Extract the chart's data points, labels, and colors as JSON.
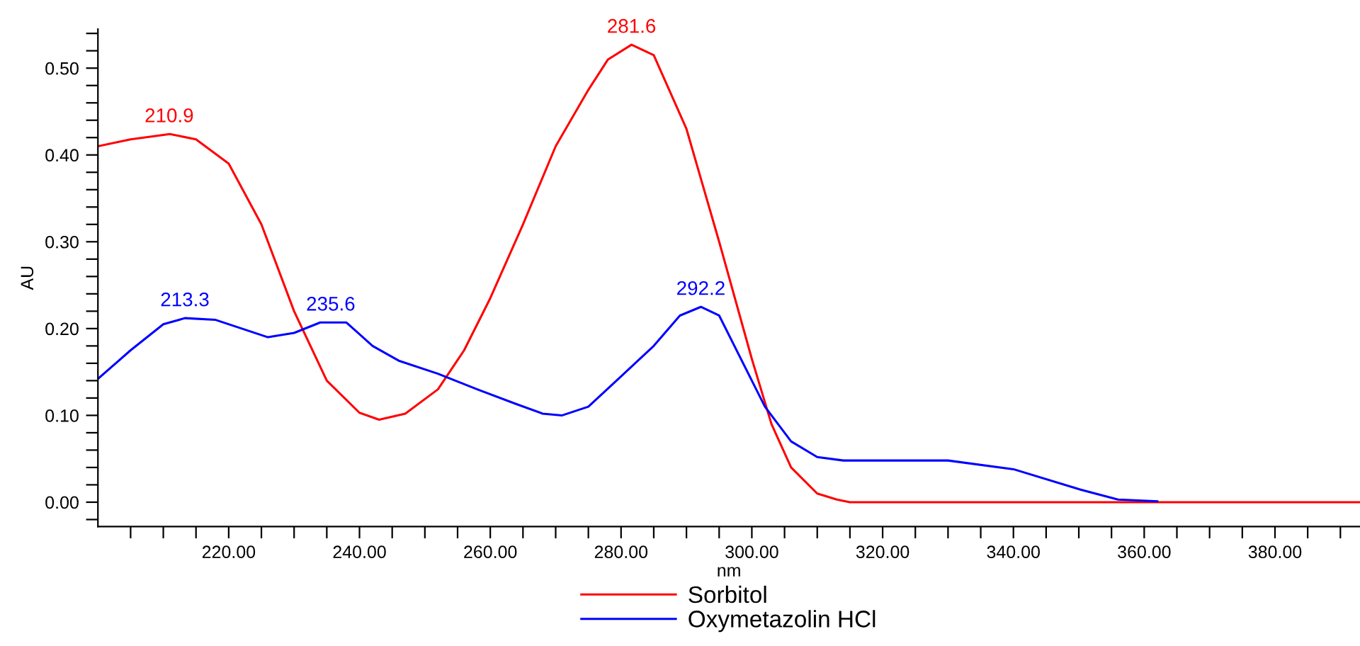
{
  "chart_data": {
    "type": "line",
    "xlabel": "nm",
    "ylabel": "AU",
    "xlim": [
      200,
      393
    ],
    "ylim": [
      -0.028,
      0.545
    ],
    "xticks": [
      {
        "value": 205,
        "label": null
      },
      {
        "value": 210,
        "label": null
      },
      {
        "value": 215,
        "label": null
      },
      {
        "value": 220,
        "label": "220.00"
      },
      {
        "value": 225,
        "label": null
      },
      {
        "value": 230,
        "label": null
      },
      {
        "value": 235,
        "label": null
      },
      {
        "value": 240,
        "label": "240.00"
      },
      {
        "value": 245,
        "label": null
      },
      {
        "value": 250,
        "label": null
      },
      {
        "value": 255,
        "label": null
      },
      {
        "value": 260,
        "label": "260.00"
      },
      {
        "value": 265,
        "label": null
      },
      {
        "value": 270,
        "label": null
      },
      {
        "value": 275,
        "label": null
      },
      {
        "value": 280,
        "label": "280.00"
      },
      {
        "value": 285,
        "label": null
      },
      {
        "value": 290,
        "label": null
      },
      {
        "value": 295,
        "label": null
      },
      {
        "value": 300,
        "label": "300.00"
      },
      {
        "value": 305,
        "label": null
      },
      {
        "value": 310,
        "label": null
      },
      {
        "value": 315,
        "label": null
      },
      {
        "value": 320,
        "label": "320.00"
      },
      {
        "value": 325,
        "label": null
      },
      {
        "value": 330,
        "label": null
      },
      {
        "value": 335,
        "label": null
      },
      {
        "value": 340,
        "label": "340.00"
      },
      {
        "value": 345,
        "label": null
      },
      {
        "value": 350,
        "label": null
      },
      {
        "value": 355,
        "label": null
      },
      {
        "value": 360,
        "label": "360.00"
      },
      {
        "value": 365,
        "label": null
      },
      {
        "value": 370,
        "label": null
      },
      {
        "value": 375,
        "label": null
      },
      {
        "value": 380,
        "label": "380.00"
      },
      {
        "value": 385,
        "label": null
      },
      {
        "value": 390,
        "label": null
      }
    ],
    "yticks": [
      {
        "value": -0.02,
        "label": null
      },
      {
        "value": 0,
        "label": "0.00"
      },
      {
        "value": 0.02,
        "label": null
      },
      {
        "value": 0.04,
        "label": null
      },
      {
        "value": 0.06,
        "label": null
      },
      {
        "value": 0.08,
        "label": null
      },
      {
        "value": 0.1,
        "label": "0.10"
      },
      {
        "value": 0.12,
        "label": null
      },
      {
        "value": 0.14,
        "label": null
      },
      {
        "value": 0.16,
        "label": null
      },
      {
        "value": 0.18,
        "label": null
      },
      {
        "value": 0.2,
        "label": "0.20"
      },
      {
        "value": 0.22,
        "label": null
      },
      {
        "value": 0.24,
        "label": null
      },
      {
        "value": 0.26,
        "label": null
      },
      {
        "value": 0.28,
        "label": null
      },
      {
        "value": 0.3,
        "label": "0.30"
      },
      {
        "value": 0.32,
        "label": null
      },
      {
        "value": 0.34,
        "label": null
      },
      {
        "value": 0.36,
        "label": null
      },
      {
        "value": 0.38,
        "label": null
      },
      {
        "value": 0.4,
        "label": "0.40"
      },
      {
        "value": 0.42,
        "label": null
      },
      {
        "value": 0.44,
        "label": null
      },
      {
        "value": 0.46,
        "label": null
      },
      {
        "value": 0.48,
        "label": null
      },
      {
        "value": 0.5,
        "label": "0.50"
      },
      {
        "value": 0.52,
        "label": null
      },
      {
        "value": 0.54,
        "label": null
      }
    ],
    "grid": false,
    "legend": "bottom",
    "marker": "none",
    "line_style": "solid",
    "series": [
      {
        "name": "Sorbitol",
        "color": "#ff0000",
        "x": [
          200,
          205,
          211,
          215,
          220,
          225,
          230,
          235,
          240,
          243,
          247,
          252,
          256,
          260,
          265,
          270,
          275,
          278,
          281.6,
          285,
          290,
          295,
          300,
          303,
          306,
          310,
          313,
          315,
          393
        ],
        "values": [
          0.41,
          0.418,
          0.424,
          0.418,
          0.39,
          0.32,
          0.22,
          0.14,
          0.103,
          0.095,
          0.102,
          0.13,
          0.175,
          0.235,
          0.32,
          0.41,
          0.475,
          0.51,
          0.527,
          0.515,
          0.43,
          0.3,
          0.165,
          0.09,
          0.04,
          0.01,
          0.003,
          0,
          0
        ]
      },
      {
        "name": "Oxymetazolin HCl",
        "color": "#0000ff",
        "x": [
          200,
          205,
          210,
          213.3,
          218,
          222,
          226,
          230,
          234,
          238,
          242,
          246,
          252,
          258,
          264,
          268,
          271,
          275,
          280,
          285,
          289,
          292.2,
          295,
          298,
          302,
          306,
          310,
          314,
          330,
          340,
          350,
          356,
          362
        ],
        "values": [
          0.142,
          0.175,
          0.205,
          0.212,
          0.21,
          0.2,
          0.19,
          0.195,
          0.207,
          0.207,
          0.18,
          0.163,
          0.148,
          0.13,
          0.113,
          0.102,
          0.1,
          0.11,
          0.145,
          0.18,
          0.215,
          0.225,
          0.215,
          0.17,
          0.11,
          0.07,
          0.052,
          0.048,
          0.048,
          0.038,
          0.015,
          0.003,
          0.001
        ]
      }
    ],
    "annotations": [
      {
        "text": "210.9",
        "x": 210.9,
        "y": 0.424
      },
      {
        "text": "281.6",
        "x": 281.6,
        "y": 0.527
      },
      {
        "text": "213.3",
        "x": 213.3,
        "y": 0.212
      },
      {
        "text": "235.6",
        "x": 235.6,
        "y": 0.207
      },
      {
        "text": "292.2",
        "x": 292.2,
        "y": 0.225
      }
    ]
  }
}
